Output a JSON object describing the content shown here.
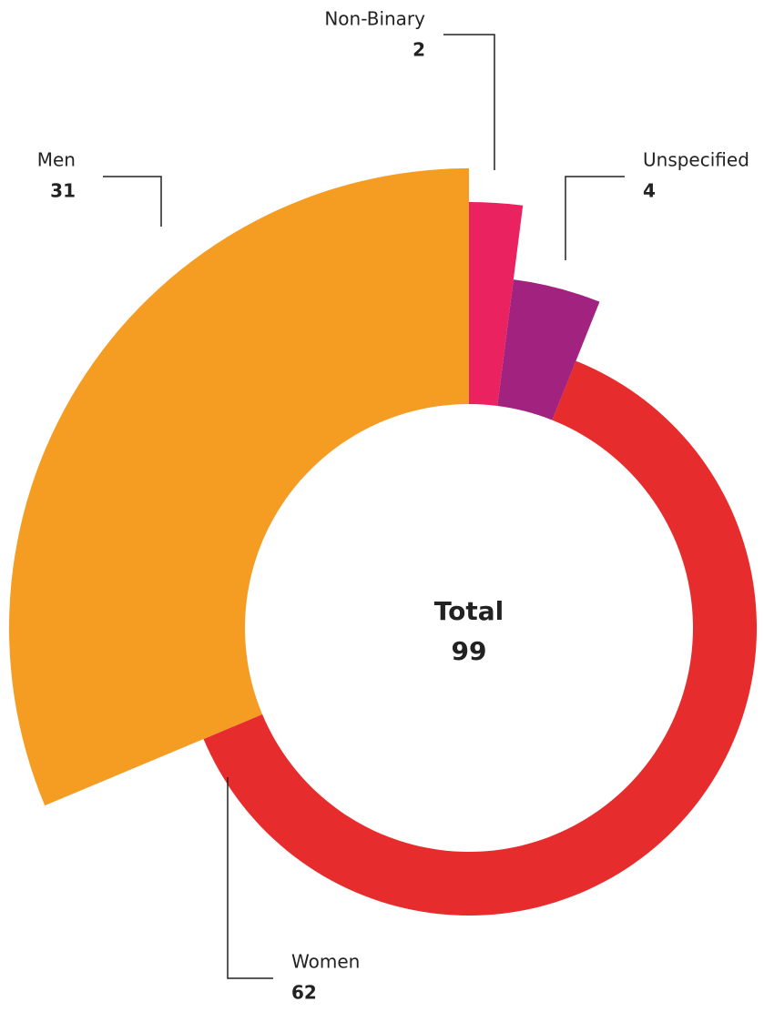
{
  "chart_data": {
    "type": "pie",
    "categories": [
      "Non-Binary",
      "Unspecified",
      "Women",
      "Men"
    ],
    "values": [
      2,
      4,
      62,
      31
    ],
    "colors": [
      "#ea2260",
      "#a2237f",
      "#e62c2c",
      "#f59c23"
    ],
    "center_label": "Total",
    "total": 99
  }
}
